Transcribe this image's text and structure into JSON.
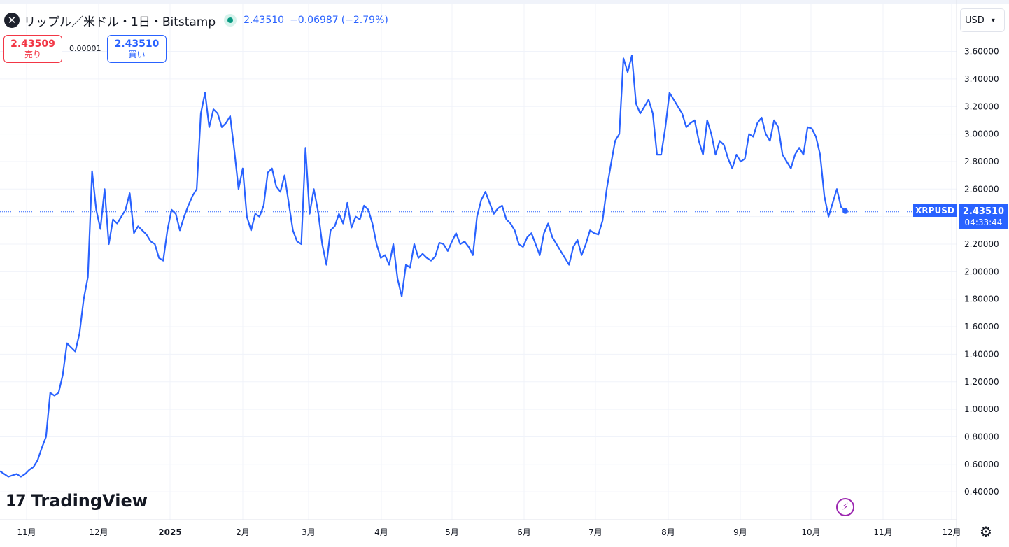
{
  "header": {
    "logo_glyph": "✕",
    "symbol_title": "リップル／米ドル・1日・Bitstamp",
    "last_price": "2.43510",
    "change_value": "−0.06987",
    "change_pct": "(−2.79%)"
  },
  "quote": {
    "sell_price": "2.43509",
    "sell_label": "売り",
    "spread": "0.00001",
    "buy_price": "2.43510",
    "buy_label": "買い"
  },
  "currency_select": {
    "value": "USD",
    "chevron_icon": "chevron-down-icon"
  },
  "price_tag": {
    "symbol": "XRPUSD",
    "price": "2.43510",
    "countdown": "04:33:44"
  },
  "branding": {
    "mark": "17",
    "name": "TradingView"
  },
  "icons": {
    "flash": "lightning-icon",
    "settings": "gear-icon"
  },
  "colors": {
    "line": "#2962ff",
    "sell": "#f23645",
    "buy": "#2962ff",
    "status": "#089981",
    "flash": "#9c27b0"
  },
  "chart_data": {
    "type": "line",
    "series": [
      {
        "values": [
          0.55,
          0.53,
          0.51,
          0.52,
          0.53,
          0.51,
          0.53,
          0.56,
          0.58,
          0.63,
          0.72,
          0.8,
          1.12,
          1.1,
          1.12,
          1.25,
          1.48,
          1.45,
          1.42,
          1.55,
          1.8,
          1.96,
          2.73,
          2.45,
          2.31,
          2.6,
          2.2,
          2.38,
          2.35,
          2.4,
          2.45,
          2.57,
          2.28,
          2.33,
          2.3,
          2.27,
          2.22,
          2.2,
          2.1,
          2.08,
          2.3,
          2.45,
          2.42,
          2.3,
          2.4,
          2.48,
          2.55,
          2.6,
          3.15,
          3.3,
          3.05,
          3.18,
          3.15,
          3.05,
          3.08,
          3.13,
          2.88,
          2.6,
          2.75,
          2.4,
          2.3,
          2.42,
          2.4,
          2.48,
          2.72,
          2.75,
          2.62,
          2.58,
          2.7,
          2.5,
          2.3,
          2.22,
          2.2,
          2.9,
          2.42,
          2.6,
          2.44,
          2.2,
          2.05,
          2.3,
          2.33,
          2.42,
          2.35,
          2.5,
          2.32,
          2.4,
          2.38,
          2.48,
          2.45,
          2.35,
          2.2,
          2.1,
          2.12,
          2.05,
          2.2,
          1.95,
          1.82,
          2.05,
          2.03,
          2.2,
          2.1,
          2.13,
          2.1,
          2.08,
          2.11,
          2.21,
          2.2,
          2.15,
          2.22,
          2.28,
          2.2,
          2.22,
          2.18,
          2.12,
          2.4,
          2.52,
          2.58,
          2.5,
          2.42,
          2.46,
          2.48,
          2.38,
          2.35,
          2.3,
          2.2,
          2.18,
          2.25,
          2.28,
          2.2,
          2.12,
          2.28,
          2.35,
          2.25,
          2.2,
          2.15,
          2.1,
          2.05,
          2.18,
          2.23,
          2.12,
          2.2,
          2.3,
          2.28,
          2.27,
          2.37,
          2.6,
          2.78,
          2.95,
          3.0,
          3.55,
          3.45,
          3.57,
          3.22,
          3.15,
          3.2,
          3.25,
          3.15,
          2.85,
          2.85,
          3.05,
          3.3,
          3.25,
          3.2,
          3.15,
          3.05,
          3.08,
          3.1,
          2.95,
          2.85,
          3.1,
          3.0,
          2.85,
          2.95,
          2.92,
          2.82,
          2.75,
          2.85,
          2.8,
          2.82,
          3.0,
          2.98,
          3.08,
          3.12,
          3.0,
          2.95,
          3.1,
          3.05,
          2.85,
          2.8,
          2.75,
          2.85,
          2.9,
          2.85,
          3.05,
          3.04,
          2.98,
          2.85,
          2.55,
          2.4,
          2.5,
          2.6,
          2.47,
          2.44
        ]
      }
    ],
    "x_tick_labels": [
      "11月",
      "12月",
      "2025",
      "2月",
      "3月",
      "4月",
      "5月",
      "6月",
      "7月",
      "8月",
      "9月",
      "10月",
      "11月",
      "12月"
    ],
    "y_tick_labels": [
      "0.40000",
      "0.60000",
      "0.80000",
      "1.00000",
      "1.20000",
      "1.40000",
      "1.60000",
      "1.80000",
      "2.00000",
      "2.20000",
      "2.40000",
      "2.60000",
      "2.80000",
      "3.00000",
      "3.20000",
      "3.40000",
      "3.60000"
    ],
    "ylim": [
      0.2,
      3.75
    ],
    "last_value": 2.4351,
    "grid": true,
    "price_axis": "right"
  }
}
